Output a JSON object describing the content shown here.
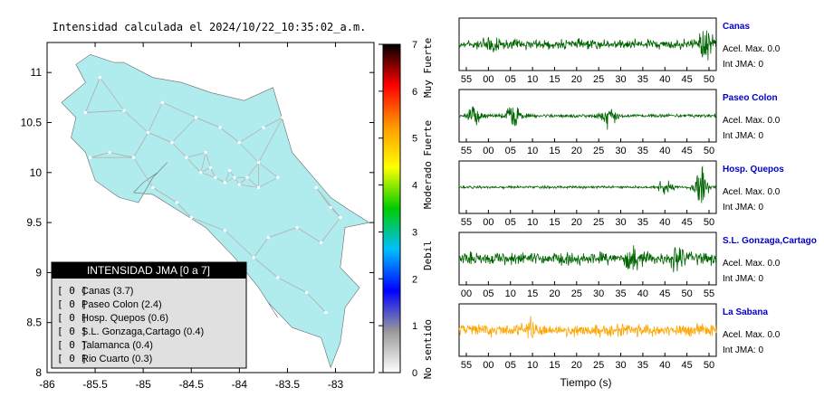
{
  "chart_data": {
    "type": "map",
    "title": "Intensidad calculada el 2024/10/22_10:35:02_a.m.",
    "map": {
      "xlim": [
        -86,
        -82.6
      ],
      "ylim": [
        8,
        11.3
      ],
      "x_ticks": [
        "-86",
        "-85.5",
        "-85",
        "-84.5",
        "-84",
        "-83.5",
        "-83"
      ],
      "y_ticks": [
        "8",
        "8.5",
        "9",
        "9.5",
        "10",
        "10.5",
        "11"
      ],
      "land_color": "#b0ecee",
      "station_color": "#ffffff",
      "road_color": "#b4b4b4",
      "outline": [
        [
          -85.2,
          11.1
        ],
        [
          -84.9,
          10.95
        ],
        [
          -84.6,
          10.9
        ],
        [
          -84.3,
          10.8
        ],
        [
          -83.95,
          10.72
        ],
        [
          -83.65,
          10.85
        ],
        [
          -83.45,
          10.2
        ],
        [
          -83.05,
          9.75
        ],
        [
          -82.85,
          9.62
        ],
        [
          -82.65,
          9.5
        ],
        [
          -82.9,
          9.45
        ],
        [
          -82.95,
          9.05
        ],
        [
          -82.75,
          8.85
        ],
        [
          -82.9,
          8.65
        ],
        [
          -82.95,
          8.3
        ],
        [
          -83.05,
          8.05
        ],
        [
          -83.15,
          8.35
        ],
        [
          -83.45,
          8.45
        ],
        [
          -83.7,
          8.7
        ],
        [
          -83.6,
          8.55
        ],
        [
          -83.8,
          8.85
        ],
        [
          -84.05,
          9.15
        ],
        [
          -84.35,
          9.45
        ],
        [
          -84.6,
          9.6
        ],
        [
          -84.9,
          9.78
        ],
        [
          -85.1,
          9.8
        ],
        [
          -85.0,
          9.9
        ],
        [
          -84.85,
          10.0
        ],
        [
          -84.75,
          10.1
        ],
        [
          -84.9,
          9.95
        ],
        [
          -85.05,
          9.7
        ],
        [
          -85.25,
          9.75
        ],
        [
          -85.5,
          9.92
        ],
        [
          -85.6,
          10.2
        ],
        [
          -85.75,
          10.35
        ],
        [
          -85.7,
          10.55
        ],
        [
          -85.85,
          10.7
        ],
        [
          -85.6,
          10.9
        ],
        [
          -85.7,
          11.08
        ],
        [
          -85.55,
          11.18
        ],
        [
          -85.3,
          11.1
        ]
      ],
      "markers": [
        [
          -85.45,
          10.95
        ],
        [
          -85.2,
          10.62
        ],
        [
          -84.95,
          10.4
        ],
        [
          -84.7,
          10.3
        ],
        [
          -84.45,
          10.55
        ],
        [
          -84.2,
          10.45
        ],
        [
          -84.0,
          10.3
        ],
        [
          -83.8,
          10.1
        ],
        [
          -83.6,
          9.95
        ],
        [
          -84.25,
          9.95
        ],
        [
          -84.15,
          9.9
        ],
        [
          -84.05,
          9.95
        ],
        [
          -84.1,
          10.02
        ],
        [
          -84.0,
          9.88
        ],
        [
          -83.92,
          9.95
        ],
        [
          -84.3,
          10.05
        ],
        [
          -84.4,
          10.0
        ],
        [
          -83.8,
          9.85
        ],
        [
          -85.1,
          10.15
        ],
        [
          -85.35,
          10.2
        ],
        [
          -85.55,
          10.15
        ],
        [
          -84.9,
          9.85
        ],
        [
          -84.65,
          9.7
        ],
        [
          -84.5,
          9.55
        ],
        [
          -84.15,
          9.42
        ],
        [
          -83.85,
          9.15
        ],
        [
          -83.6,
          8.95
        ],
        [
          -83.3,
          8.8
        ],
        [
          -83.1,
          8.6
        ],
        [
          -83.15,
          9.3
        ],
        [
          -83.4,
          9.45
        ],
        [
          -83.7,
          9.35
        ],
        [
          -82.95,
          9.55
        ],
        [
          -83.2,
          9.85
        ],
        [
          -83.05,
          9.65
        ],
        [
          -85.6,
          10.6
        ],
        [
          -84.8,
          10.7
        ],
        [
          -83.55,
          10.55
        ],
        [
          -83.75,
          10.45
        ],
        [
          -84.55,
          10.15
        ],
        [
          -84.35,
          10.2
        ]
      ]
    },
    "colorbar": {
      "range": [
        0,
        7
      ],
      "ticks": [
        "0",
        "1",
        "2",
        "3",
        "4",
        "5",
        "6",
        "7"
      ],
      "labels": [
        "No sentido",
        "Debil",
        "Moderado",
        "Fuerte",
        "Muy Fuerte"
      ],
      "stops": [
        "#ffffff",
        "#9a9a9a",
        "#0000ff",
        "#00bfff",
        "#00cc00",
        "#ffff00",
        "#ff9900",
        "#ff0000",
        "#000000"
      ]
    },
    "legend": {
      "title": "INTENSIDAD JMA [0 a 7]",
      "entries": [
        {
          "box": "[ 0 ]",
          "label": "Canas (3.7)"
        },
        {
          "box": "[ 0 ]",
          "label": "Paseo Colon (2.4)"
        },
        {
          "box": "[ 0 ]",
          "label": "Hosp. Quepos (0.6)"
        },
        {
          "box": "[ 0 ]",
          "label": "S.L. Gonzaga,Cartago (0.4)"
        },
        {
          "box": "[ 0 ]",
          "label": "Talamanca (0.4)"
        },
        {
          "box": "[ 0 ]",
          "label": "Rio Cuarto (0.3)"
        }
      ]
    },
    "waveforms": {
      "xlabel": "Tiempo (s)",
      "panels": [
        {
          "station": "Canas",
          "accel": "Acel. Max. 0.0",
          "int": "Int JMA: 0",
          "color": "#006400",
          "ticks": [
            "55",
            "00",
            "05",
            "10",
            "15",
            "20",
            "25",
            "30",
            "35",
            "40",
            "45",
            "50"
          ],
          "bursts": [
            [
              0.96,
              1.6
            ],
            [
              0.12,
              0.9
            ]
          ],
          "base": 0.45
        },
        {
          "station": "Paseo Colon",
          "accel": "Acel. Max. 0.0",
          "int": "Int JMA: 0",
          "color": "#006400",
          "ticks": [
            "55",
            "00",
            "05",
            "10",
            "15",
            "20",
            "25",
            "30",
            "35",
            "40",
            "45",
            "50"
          ],
          "bursts": [
            [
              0.21,
              1.3
            ],
            [
              0.06,
              0.9
            ],
            [
              0.58,
              1.2
            ]
          ],
          "base": 0.18
        },
        {
          "station": "Hosp. Quepos",
          "accel": "Acel. Max. 0.0",
          "int": "Int JMA: 0",
          "color": "#006400",
          "ticks": [
            "55",
            "00",
            "05",
            "10",
            "15",
            "20",
            "25",
            "30",
            "35",
            "40",
            "45",
            "50"
          ],
          "bursts": [
            [
              0.94,
              2.4
            ],
            [
              0.8,
              0.8
            ]
          ],
          "base": 0.12
        },
        {
          "station": "S.L. Gonzaga,Cartago",
          "accel": "Acel. Max. 0.0",
          "int": "Int JMA: 0",
          "color": "#006400",
          "ticks": [
            "00",
            "05",
            "10",
            "15",
            "20",
            "25",
            "30",
            "35",
            "40",
            "45",
            "50",
            "55"
          ],
          "bursts": [
            [
              0.68,
              1.0
            ],
            [
              0.85,
              0.9
            ]
          ],
          "base": 0.6
        },
        {
          "station": "La Sabana",
          "accel": "Acel. Max. 0.0",
          "int": "Int JMA: 0",
          "color": "#ffa500",
          "ticks": [
            "55",
            "00",
            "05",
            "10",
            "15",
            "20",
            "25",
            "30",
            "35",
            "40",
            "45",
            "50"
          ],
          "bursts": [
            [
              0.28,
              0.6
            ]
          ],
          "base": 0.6
        }
      ]
    }
  }
}
